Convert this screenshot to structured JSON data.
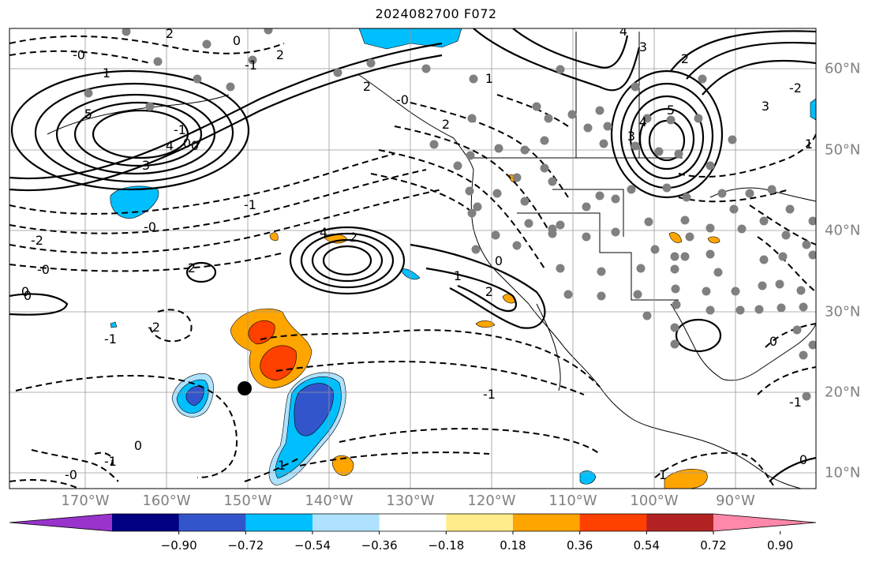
{
  "title": "2024082700 F072",
  "lon_labels": [
    "170°W",
    "160°W",
    "150°W",
    "140°W",
    "130°W",
    "120°W",
    "110°W",
    "100°W",
    "90°W"
  ],
  "lat_labels": [
    "60°N",
    "50°N",
    "40°N",
    "30°N",
    "20°N",
    "10°N"
  ],
  "colorbar": {
    "colors": [
      "#9933cc",
      "#000080",
      "#3355cc",
      "#00bfff",
      "#aee2ff",
      "#ffffff",
      "#ffeb8a",
      "#ffa500",
      "#ff4000",
      "#b22222",
      "#ff88aa"
    ],
    "labels": [
      "−0.90",
      "−0.72",
      "−0.54",
      "−0.36",
      "−0.18",
      "0.18",
      "0.36",
      "0.54",
      "0.72",
      "0.90"
    ]
  },
  "contour_labels": [
    "-0",
    "2",
    "0",
    "2",
    "1",
    "5",
    "4",
    "3",
    "0",
    "-1",
    "-2",
    "-0",
    "0",
    "-1",
    "2",
    "-0",
    "-2",
    "0",
    "-2",
    "1",
    "2",
    "2",
    "-0",
    "2",
    "-1",
    "-0",
    "-1",
    "1",
    "1",
    "4",
    "3",
    "2",
    "5",
    "4",
    "3",
    "0",
    "0",
    "3",
    "-2",
    "1",
    "4",
    "0",
    "-1",
    "0",
    "1",
    "-1",
    "-1",
    "1",
    "0"
  ],
  "colors": {
    "station": "#808080",
    "contour": "#000000",
    "grid": "#999999"
  },
  "shading": "#00bfff"
}
